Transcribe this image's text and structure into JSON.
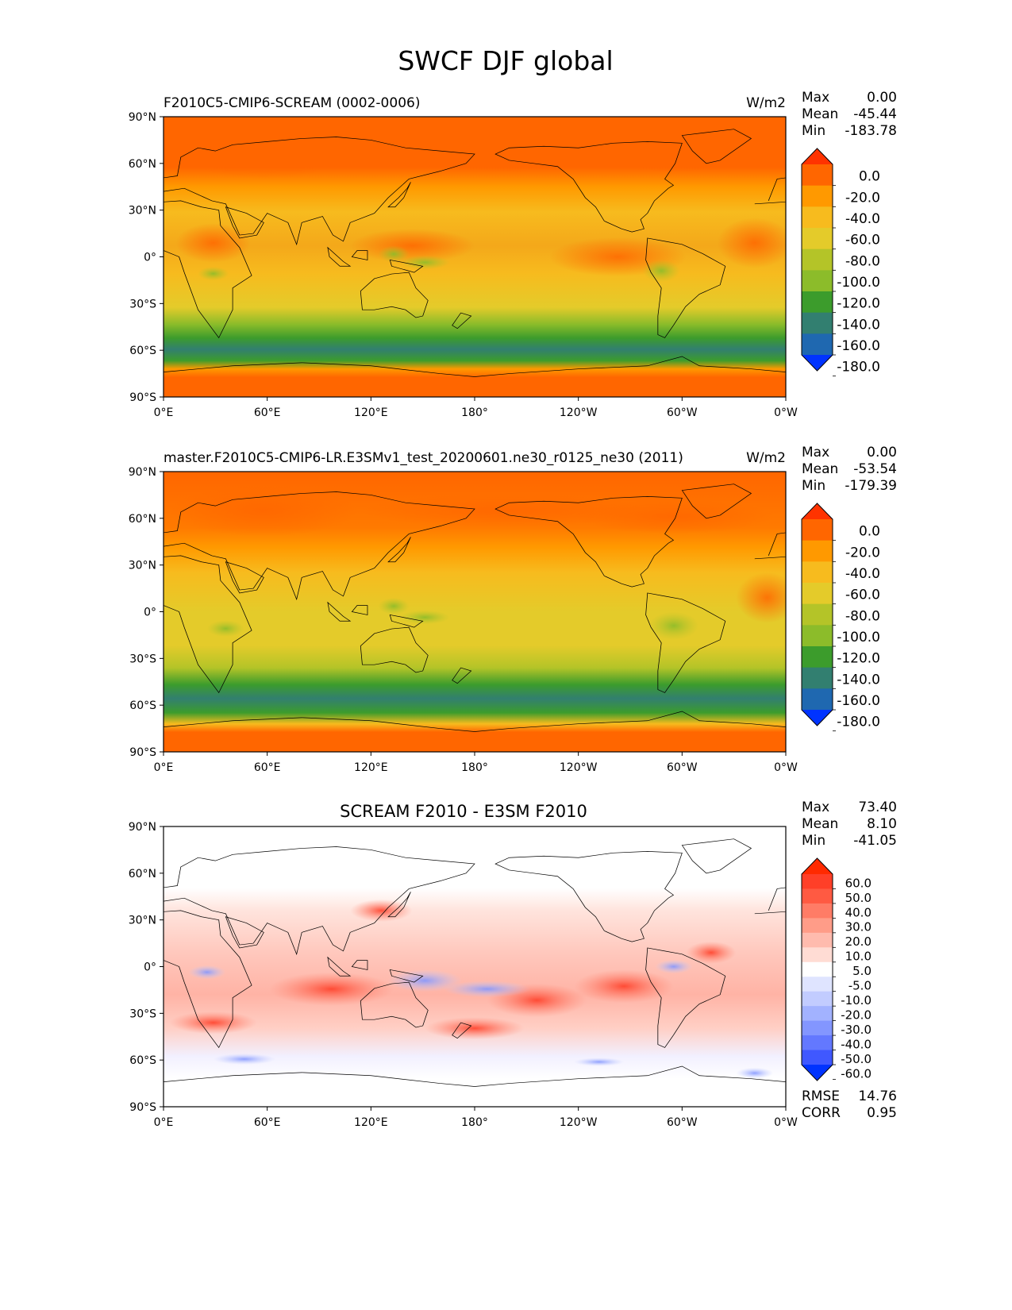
{
  "figure": {
    "title": "SWCF DJF global"
  },
  "x_ticks": [
    "0°E",
    "60°E",
    "120°E",
    "180°",
    "120°W",
    "60°W",
    "0°W"
  ],
  "y_ticks": [
    "90°N",
    "60°N",
    "30°N",
    "0°",
    "30°S",
    "60°S",
    "90°S"
  ],
  "panels": [
    {
      "title_left": "F2010C5-CMIP6-SCREAM (0002-0006)",
      "title_center": "",
      "units": "W/m2",
      "stats": [
        {
          "label": "Max",
          "value": "0.00"
        },
        {
          "label": "Mean",
          "value": "-45.44"
        },
        {
          "label": "Min",
          "value": "-183.78"
        }
      ],
      "colorbar": {
        "labels": [
          "0.0",
          "-20.0",
          "-40.0",
          "-60.0",
          "-80.0",
          "-100.0",
          "-120.0",
          "-140.0",
          "-160.0",
          "-180.0"
        ],
        "colors": [
          "#ff3300",
          "#ff6600",
          "#ff9900",
          "#f7bb1e",
          "#e4cb2a",
          "#b4c428",
          "#8cbc2a",
          "#3c9c2c",
          "#327f70",
          "#1f68b0",
          "#0033ff"
        ]
      },
      "footer": []
    },
    {
      "title_left": "master.F2010C5-CMIP6-LR.E3SMv1_test_20200601.ne30_r0125_ne30 (2011)",
      "title_center": "",
      "units": "W/m2",
      "stats": [
        {
          "label": "Max",
          "value": "0.00"
        },
        {
          "label": "Mean",
          "value": "-53.54"
        },
        {
          "label": "Min",
          "value": "-179.39"
        }
      ],
      "colorbar": {
        "labels": [
          "0.0",
          "-20.0",
          "-40.0",
          "-60.0",
          "-80.0",
          "-100.0",
          "-120.0",
          "-140.0",
          "-160.0",
          "-180.0"
        ],
        "colors": [
          "#ff3300",
          "#ff6600",
          "#ff9900",
          "#f7bb1e",
          "#e4cb2a",
          "#b4c428",
          "#8cbc2a",
          "#3c9c2c",
          "#327f70",
          "#1f68b0",
          "#0033ff"
        ]
      },
      "footer": []
    },
    {
      "title_left": "",
      "title_center": "SCREAM F2010 - E3SM F2010",
      "units": "",
      "stats": [
        {
          "label": "Max",
          "value": "73.40"
        },
        {
          "label": "Mean",
          "value": "8.10"
        },
        {
          "label": "Min",
          "value": "-41.05"
        }
      ],
      "colorbar": {
        "labels": [
          "60.0",
          "50.0",
          "40.0",
          "30.0",
          "20.0",
          "10.0",
          "5.0",
          "-5.0",
          "-10.0",
          "-20.0",
          "-30.0",
          "-40.0",
          "-50.0",
          "-60.0"
        ],
        "colors": [
          "#ff2a00",
          "#ff3f28",
          "#ff5a42",
          "#ff7c66",
          "#ff9c88",
          "#ffbbae",
          "#ffdcd4",
          "#ffffff",
          "#dfe4ff",
          "#c2ccff",
          "#a2b2ff",
          "#8396ff",
          "#6378ff",
          "#4058ff",
          "#0033ff"
        ]
      },
      "footer": [
        {
          "label": "RMSE",
          "value": "14.76"
        },
        {
          "label": "CORR",
          "value": "0.95"
        }
      ]
    }
  ],
  "chart_data": [
    {
      "type": "heatmap",
      "title": "F2010C5-CMIP6-SCREAM (0002-0006)",
      "units": "W/m2",
      "x_range": [
        0,
        360
      ],
      "y_range": [
        -90,
        90
      ],
      "zonal_mean_profile": {
        "lat": [
          90,
          75,
          60,
          45,
          30,
          15,
          0,
          -15,
          -30,
          -45,
          -55,
          -60,
          -70,
          -90
        ],
        "value": [
          -10,
          -15,
          -30,
          -45,
          -40,
          -40,
          -60,
          -55,
          -60,
          -120,
          -150,
          -140,
          -20,
          -10
        ]
      },
      "stats": {
        "max": 0.0,
        "mean": -45.44,
        "min": -183.78
      }
    },
    {
      "type": "heatmap",
      "title": "master.F2010C5-CMIP6-LR.E3SMv1_test_20200601.ne30_r0125_ne30 (2011)",
      "units": "W/m2",
      "x_range": [
        0,
        360
      ],
      "y_range": [
        -90,
        90
      ],
      "zonal_mean_profile": {
        "lat": [
          90,
          75,
          60,
          45,
          30,
          15,
          0,
          -15,
          -30,
          -45,
          -55,
          -60,
          -70,
          -90
        ],
        "value": [
          -10,
          -15,
          -35,
          -50,
          -50,
          -55,
          -70,
          -65,
          -70,
          -130,
          -160,
          -150,
          -25,
          -10
        ]
      },
      "stats": {
        "max": 0.0,
        "mean": -53.54,
        "min": -179.39
      }
    },
    {
      "type": "heatmap",
      "title": "SCREAM F2010 - E3SM F2010",
      "x_range": [
        0,
        360
      ],
      "y_range": [
        -90,
        90
      ],
      "zonal_mean_profile": {
        "lat": [
          90,
          75,
          60,
          45,
          30,
          15,
          0,
          -15,
          -30,
          -45,
          -55,
          -60,
          -70,
          -90
        ],
        "value": [
          0,
          0,
          5,
          5,
          10,
          15,
          10,
          10,
          10,
          10,
          10,
          10,
          5,
          0
        ]
      },
      "stats": {
        "max": 73.4,
        "mean": 8.1,
        "min": -41.05,
        "rmse": 14.76,
        "corr": 0.95
      }
    }
  ]
}
